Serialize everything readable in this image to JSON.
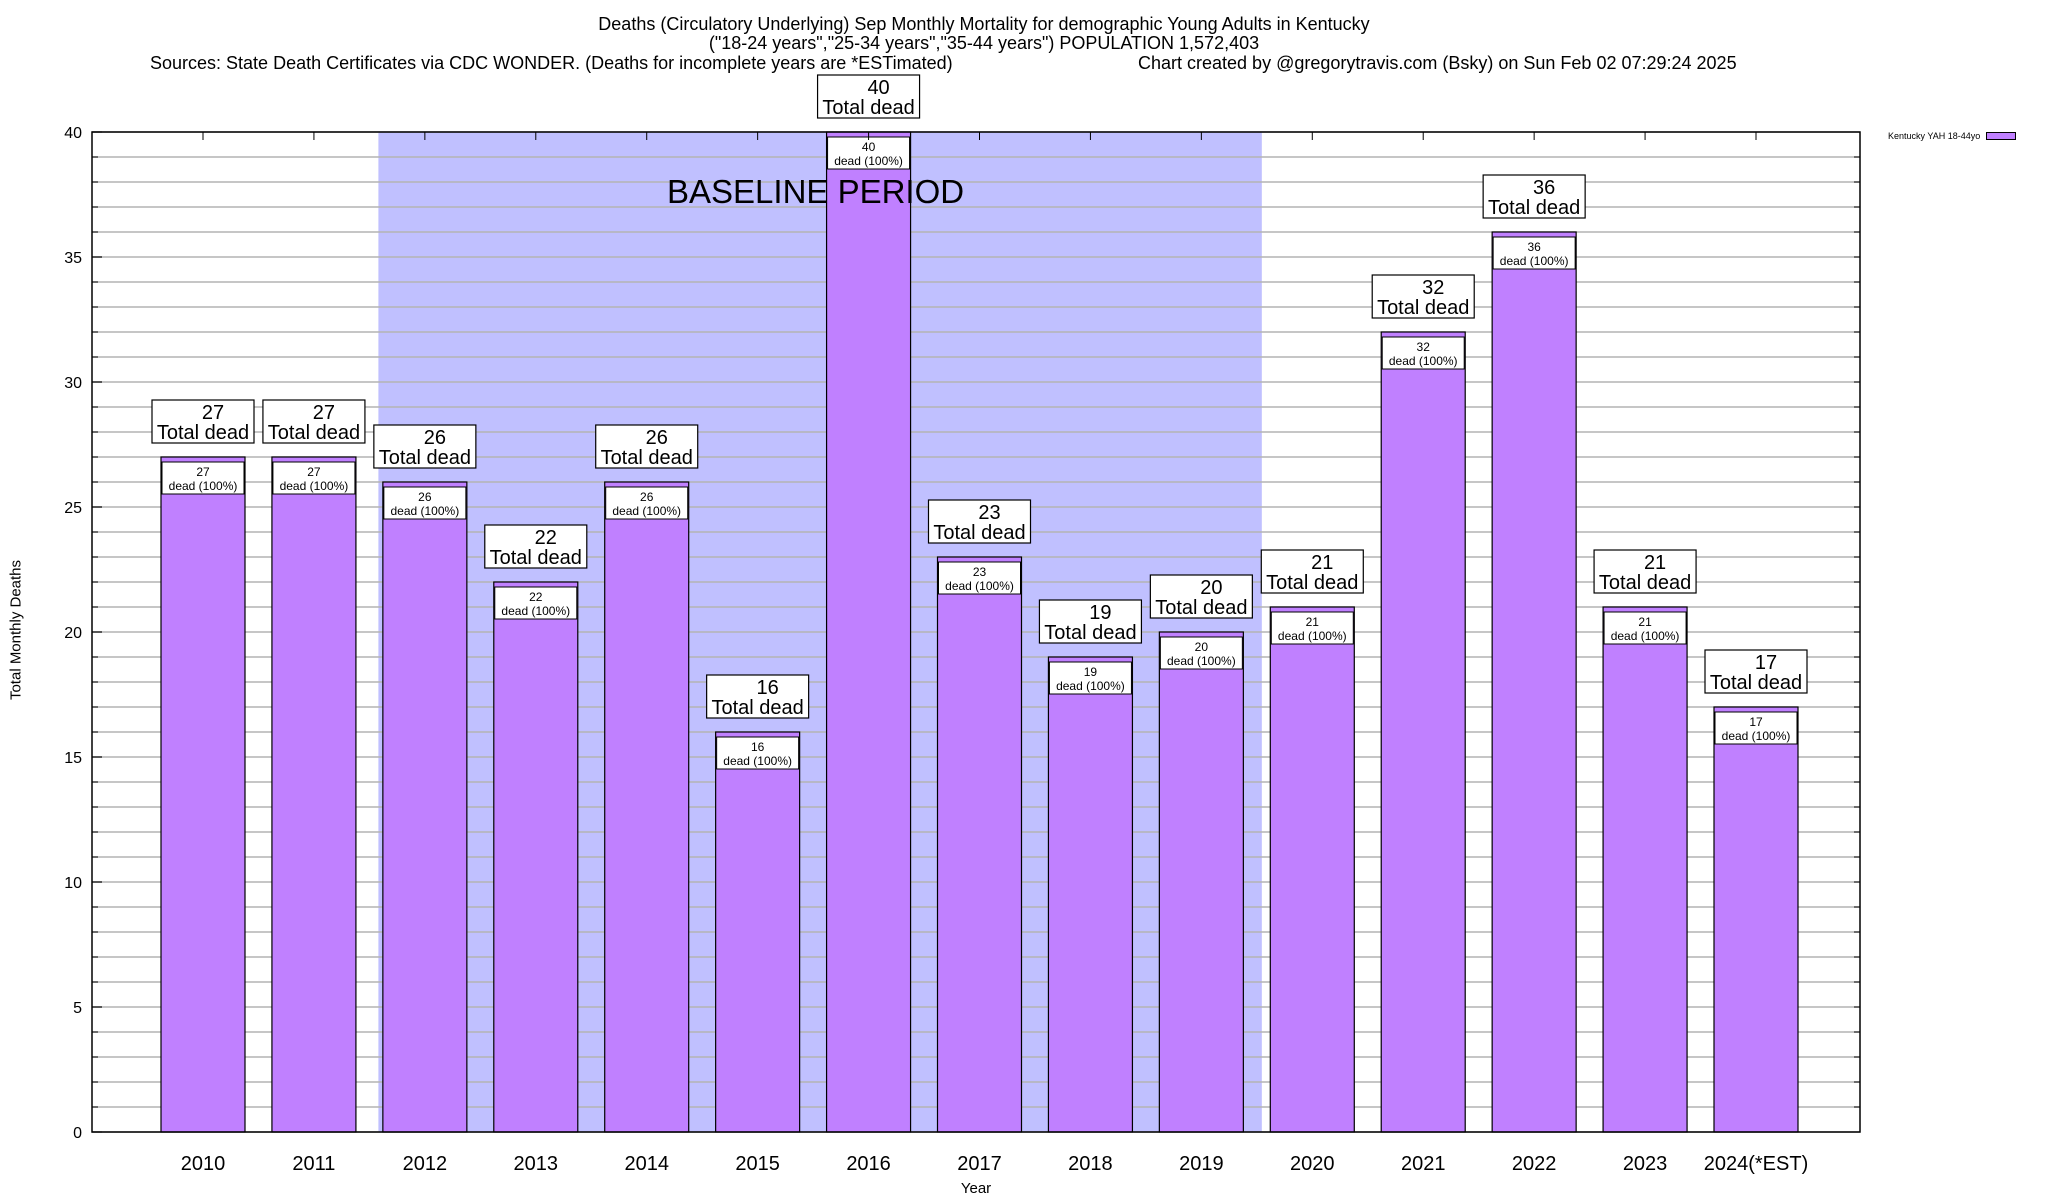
{
  "chart_data": {
    "type": "bar",
    "title": "Deaths (Circulatory Underlying) Sep Monthly Mortality for demographic Young Adults in Kentucky",
    "subtitle": "(\"18-24 years\",\"25-34 years\",\"35-44 years\") POPULATION 1,572,403",
    "sources": "Sources: State Death Certificates via CDC WONDER. (Deaths for incomplete years are *ESTimated)",
    "credit": "Chart created by @gregorytravis.com (Bsky) on Sun Feb 02 07:29:24 2025",
    "xlabel": "Year",
    "ylabel": "Total Monthly Deaths",
    "ylim": [
      0,
      40
    ],
    "yticks": [
      0,
      5,
      10,
      15,
      20,
      25,
      30,
      35,
      40
    ],
    "minor_grid_step": 1,
    "grid": true,
    "categories": [
      "2010",
      "2011",
      "2012",
      "2013",
      "2014",
      "2015",
      "2016",
      "2017",
      "2018",
      "2019",
      "2020",
      "2021",
      "2022",
      "2023",
      "2024(*EST)"
    ],
    "series": [
      {
        "name": "Kentucky YAH 18-44yo",
        "color": "#c080ff",
        "values": [
          27,
          27,
          26,
          22,
          26,
          16,
          40,
          23,
          19,
          20,
          21,
          32,
          36,
          21,
          17
        ]
      }
    ],
    "total_label_suffix": "Total dead",
    "inner_label_suffix": "dead (100%)",
    "annotation": {
      "text": "BASELINE PERIOD",
      "span_categories": [
        "2012",
        "2019"
      ],
      "color": "#c0c0ff"
    },
    "legend_position": "top-right"
  }
}
